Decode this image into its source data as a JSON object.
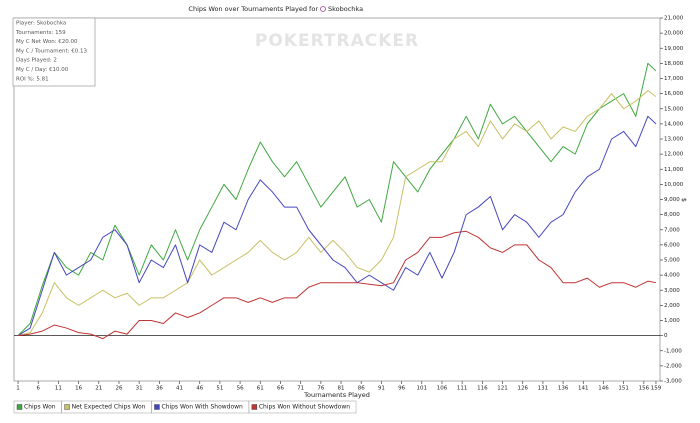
{
  "chart_data": {
    "type": "line",
    "title": "Chips Won over Tournaments Played for",
    "player": "Skobochka",
    "watermark": "POKERTRACKER",
    "info_box": [
      "Player: Skobochka",
      "Tournaments: 159",
      "My C Net Won: €20.00",
      "My C / Tournament: €0.13",
      "Days Played: 2",
      "My C / Day: €10.00",
      "ROI %: 5.81"
    ],
    "x_label": "Tournaments Played",
    "y_label": "$",
    "x": [
      1,
      4,
      7,
      10,
      13,
      16,
      19,
      22,
      25,
      28,
      31,
      34,
      37,
      40,
      43,
      46,
      49,
      52,
      55,
      58,
      61,
      64,
      67,
      70,
      73,
      76,
      79,
      82,
      85,
      88,
      91,
      94,
      97,
      100,
      103,
      106,
      109,
      112,
      115,
      118,
      121,
      124,
      127,
      130,
      133,
      136,
      139,
      142,
      145,
      148,
      151,
      154,
      157,
      159
    ],
    "xlim": [
      0,
      160
    ],
    "xticks": [
      1,
      6,
      11,
      16,
      21,
      26,
      31,
      36,
      41,
      46,
      51,
      56,
      61,
      66,
      71,
      76,
      81,
      86,
      91,
      96,
      101,
      106,
      111,
      116,
      121,
      126,
      131,
      136,
      141,
      146,
      151,
      156,
      159
    ],
    "ylim": [
      -3000,
      21000
    ],
    "yticks": [
      {
        "value": -3000,
        "label": "-3,000"
      },
      {
        "value": -2000,
        "label": "-2,000"
      },
      {
        "value": -1000,
        "label": "-1,000"
      },
      0,
      {
        "value": 1000,
        "label": "1,000"
      },
      {
        "value": 2000,
        "label": "2,000"
      },
      {
        "value": 3000,
        "label": "3,000"
      },
      {
        "value": 4000,
        "label": "4,000"
      },
      {
        "value": 5000,
        "label": "5,000"
      },
      {
        "value": 6000,
        "label": "6,000"
      },
      {
        "value": 7000,
        "label": "7,000"
      },
      {
        "value": 8000,
        "label": "8,000"
      },
      {
        "value": 9000,
        "label": "9,000"
      },
      {
        "value": 10000,
        "label": "10,000"
      },
      {
        "value": 11000,
        "label": "11,000"
      },
      {
        "value": 12000,
        "label": "12,000"
      },
      {
        "value": 13000,
        "label": "13,000"
      },
      {
        "value": 14000,
        "label": "14,000"
      },
      {
        "value": 15000,
        "label": "15,000"
      },
      {
        "value": 16000,
        "label": "16,000"
      },
      {
        "value": 17000,
        "label": "17,000"
      },
      {
        "value": 18000,
        "label": "18,000"
      },
      {
        "value": 19000,
        "label": "19,000"
      },
      {
        "value": 20000,
        "label": "20,000"
      },
      {
        "value": 21000,
        "label": "21,000"
      }
    ],
    "series": [
      {
        "name": "Chips Won",
        "color": "#3fa83f",
        "values": [
          0,
          800,
          3300,
          5500,
          4500,
          4000,
          5500,
          5000,
          7300,
          6000,
          4000,
          6000,
          5000,
          7000,
          5000,
          7000,
          8500,
          10000,
          9000,
          11000,
          12800,
          11500,
          10500,
          11500,
          10000,
          8500,
          9500,
          10500,
          8500,
          9000,
          7500,
          11500,
          10500,
          9500,
          11000,
          12000,
          13000,
          14500,
          13000,
          15300,
          14000,
          14500,
          13500,
          12500,
          11500,
          12500,
          12000,
          14000,
          15000,
          15500,
          16000,
          14500,
          18000,
          17500
        ]
      },
      {
        "name": "Net Expected Chips Won",
        "color": "#c8c064",
        "values": [
          0,
          200,
          1500,
          3500,
          2500,
          2000,
          2500,
          3000,
          2500,
          2800,
          2000,
          2500,
          2500,
          3000,
          3500,
          5000,
          4000,
          4500,
          5000,
          5500,
          6300,
          5500,
          5000,
          5500,
          6500,
          5500,
          6300,
          5500,
          4500,
          4200,
          5000,
          6500,
          10500,
          11000,
          11500,
          11500,
          13000,
          13500,
          12500,
          14200,
          13000,
          14000,
          13500,
          14200,
          13000,
          13800,
          13500,
          14500,
          15000,
          16000,
          15000,
          15500,
          16200,
          15800
        ]
      },
      {
        "name": "Chips Won With Showdown",
        "color": "#4646c0",
        "values": [
          0,
          500,
          3000,
          5500,
          4000,
          4500,
          5000,
          6500,
          7000,
          6000,
          3500,
          5000,
          4500,
          6000,
          3500,
          6000,
          5500,
          7500,
          7000,
          9000,
          10300,
          9500,
          8500,
          8500,
          7000,
          6000,
          5000,
          4500,
          3500,
          4000,
          3500,
          3000,
          4500,
          4000,
          5500,
          3800,
          5500,
          8000,
          8500,
          9200,
          7000,
          8000,
          7500,
          6500,
          7500,
          8000,
          9500,
          10500,
          11000,
          13000,
          13500,
          12500,
          14500,
          14000
        ]
      },
      {
        "name": "Chips Won Without Showdown",
        "color": "#c03434",
        "values": [
          0,
          100,
          300,
          700,
          500,
          200,
          100,
          -200,
          300,
          100,
          1000,
          1000,
          800,
          1500,
          1200,
          1500,
          2000,
          2500,
          2500,
          2200,
          2500,
          2200,
          2500,
          2500,
          3200,
          3500,
          3500,
          3500,
          3500,
          3400,
          3300,
          3500,
          5000,
          5500,
          6500,
          6500,
          6800,
          6900,
          6500,
          5800,
          5500,
          6000,
          6000,
          5000,
          4500,
          3500,
          3500,
          3800,
          3200,
          3500,
          3500,
          3200,
          3600,
          3500
        ]
      }
    ]
  }
}
